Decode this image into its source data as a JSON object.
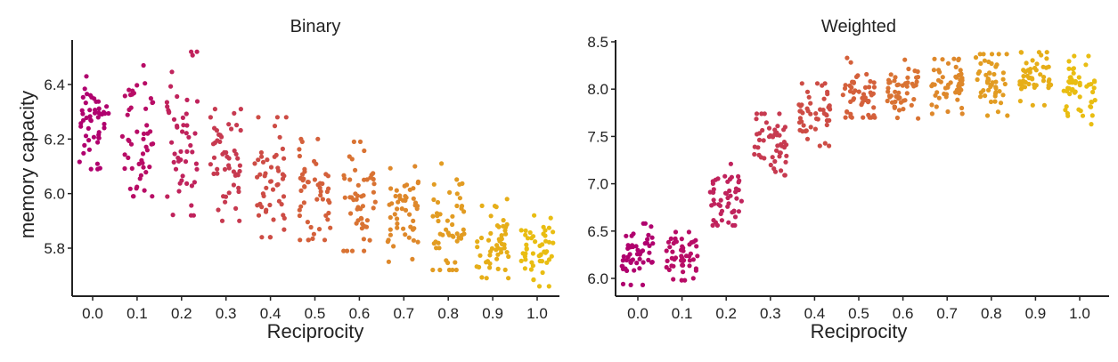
{
  "chart_data": [
    {
      "type": "scatter",
      "subtype": "strip",
      "title": "Binary",
      "xlabel": "Reciprocity",
      "ylabel": "memory capacity",
      "categories": [
        "0.0",
        "0.1",
        "0.2",
        "0.3",
        "0.4",
        "0.5",
        "0.6",
        "0.7",
        "0.8",
        "0.9",
        "1.0"
      ],
      "ylim": [
        5.63,
        6.55
      ],
      "yticks": [
        "5.8",
        "6.0",
        "6.2",
        "6.4"
      ],
      "points_per_category": 50,
      "mean": [
        6.26,
        6.19,
        6.17,
        6.11,
        6.05,
        6.01,
        5.97,
        5.91,
        5.87,
        5.83,
        5.78
      ],
      "min": [
        6.09,
        5.99,
        5.92,
        5.9,
        5.84,
        5.83,
        5.79,
        5.75,
        5.72,
        5.69,
        5.66
      ],
      "max": [
        6.43,
        6.47,
        6.52,
        6.31,
        6.28,
        6.2,
        6.19,
        6.1,
        6.11,
        5.98,
        5.92
      ],
      "grid": false
    },
    {
      "type": "scatter",
      "subtype": "strip",
      "title": "Weighted",
      "xlabel": "Reciprocity",
      "ylabel": "",
      "categories": [
        "0.0",
        "0.1",
        "0.2",
        "0.3",
        "0.4",
        "0.5",
        "0.6",
        "0.7",
        "0.8",
        "0.9",
        "1.0"
      ],
      "ylim": [
        5.8,
        8.5
      ],
      "yticks": [
        "6.0",
        "6.5",
        "7.0",
        "7.5",
        "8.0",
        "8.5"
      ],
      "points_per_category": 50,
      "mean": [
        6.22,
        6.26,
        6.82,
        7.4,
        7.74,
        7.9,
        8.01,
        8.06,
        8.11,
        8.13,
        8.03
      ],
      "min": [
        5.93,
        5.98,
        6.56,
        7.09,
        7.4,
        7.7,
        7.69,
        7.74,
        7.72,
        7.83,
        7.63
      ],
      "max": [
        6.58,
        6.49,
        7.21,
        7.74,
        8.06,
        8.33,
        8.31,
        8.32,
        8.37,
        8.39,
        8.35
      ],
      "grid": false
    }
  ],
  "colors": [
    "#b0006e",
    "#b80c66",
    "#c0235c",
    "#c73a50",
    "#cd4c45",
    "#d4603b",
    "#d97333",
    "#de882b",
    "#e29c22",
    "#e6ae18",
    "#e9bd12"
  ]
}
